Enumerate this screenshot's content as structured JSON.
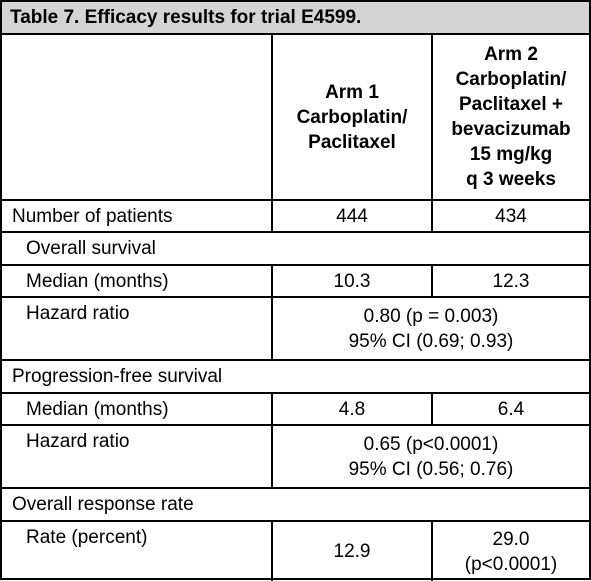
{
  "title": "Table 7. Efficacy results for trial E4599.",
  "columns": [
    [
      "Arm 1",
      "Carboplatin/",
      "Paclitaxel"
    ],
    [
      "Arm 2",
      "Carboplatin/",
      "Paclitaxel +",
      "bevacizumab",
      "15 mg/kg",
      "q 3 weeks"
    ]
  ],
  "rows": [
    {
      "label": "Number of patients",
      "cells": [
        [
          "444"
        ],
        [
          "434"
        ]
      ]
    }
  ],
  "sections": [
    {
      "title": "Overall survival",
      "rows": [
        {
          "label": "Median (months)",
          "cells": [
            [
              "10.3"
            ],
            [
              "12.3"
            ]
          ]
        },
        {
          "label": "Hazard ratio",
          "span": [
            "0.80 (p = 0.003)",
            "95% CI (0.69; 0.93)"
          ]
        }
      ]
    },
    {
      "title": "Progression-free survival",
      "rows": [
        {
          "label": "Median (months)",
          "cells": [
            [
              "4.8"
            ],
            [
              "6.4"
            ]
          ]
        },
        {
          "label": "Hazard ratio",
          "span": [
            "0.65 (p<0.0001)",
            "95% CI (0.56; 0.76)"
          ]
        }
      ]
    },
    {
      "title": "Overall response rate",
      "rows": [
        {
          "label": "Rate (percent)",
          "cells": [
            [
              "12.9"
            ],
            [
              "29.0",
              "(p<0.0001)"
            ]
          ]
        }
      ]
    }
  ]
}
